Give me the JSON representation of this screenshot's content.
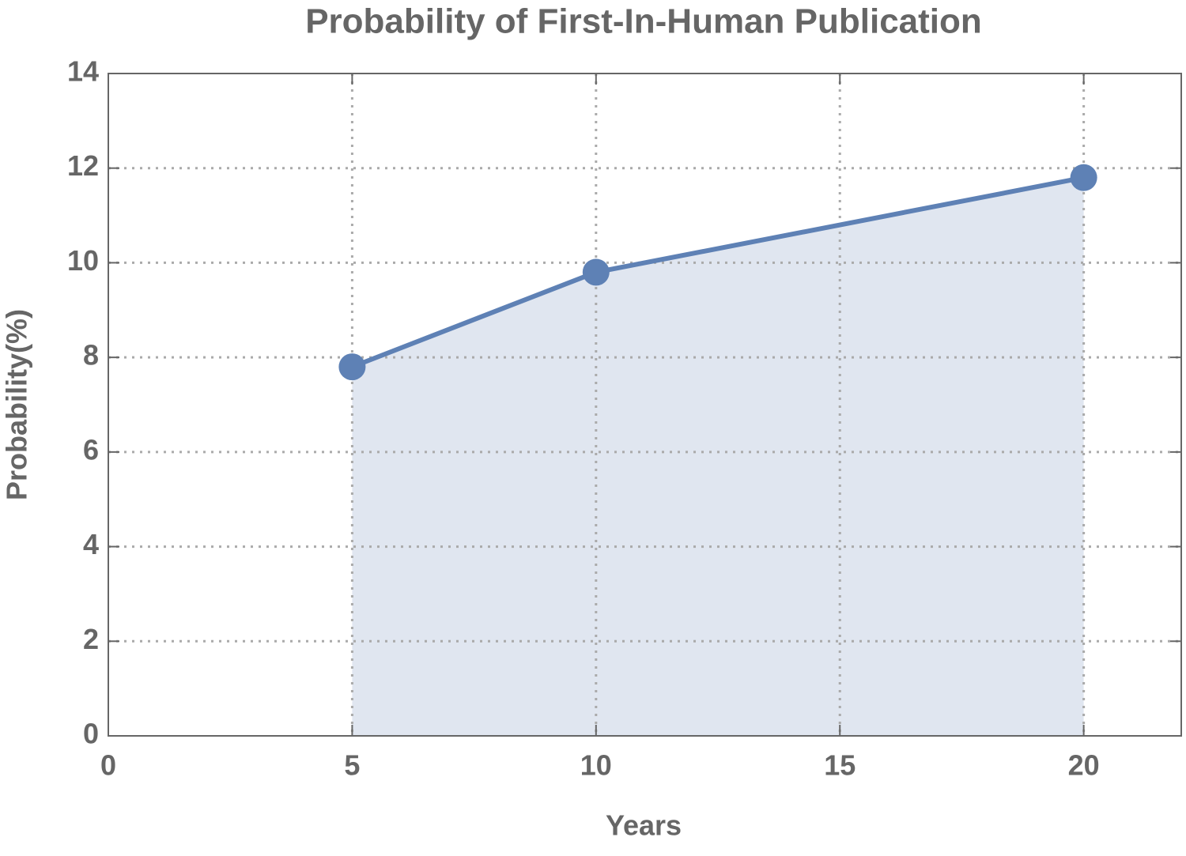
{
  "chart_data": {
    "type": "line",
    "title": "Probability of First-In-Human Publication",
    "x_label": "Years",
    "y_label": "Probability(%)",
    "x": [
      5,
      10,
      20
    ],
    "series": [
      {
        "name": "Probability",
        "color": "#5e81b5",
        "values": [
          7.8,
          9.8,
          11.8
        ]
      }
    ],
    "fill_color": "#e0e6f0",
    "xlim": [
      0,
      22
    ],
    "xticks": [
      0,
      5,
      10,
      15,
      20
    ],
    "ylim": [
      0,
      14
    ],
    "yticks": [
      0,
      2,
      4,
      6,
      8,
      10,
      12,
      14
    ],
    "grid": true
  }
}
